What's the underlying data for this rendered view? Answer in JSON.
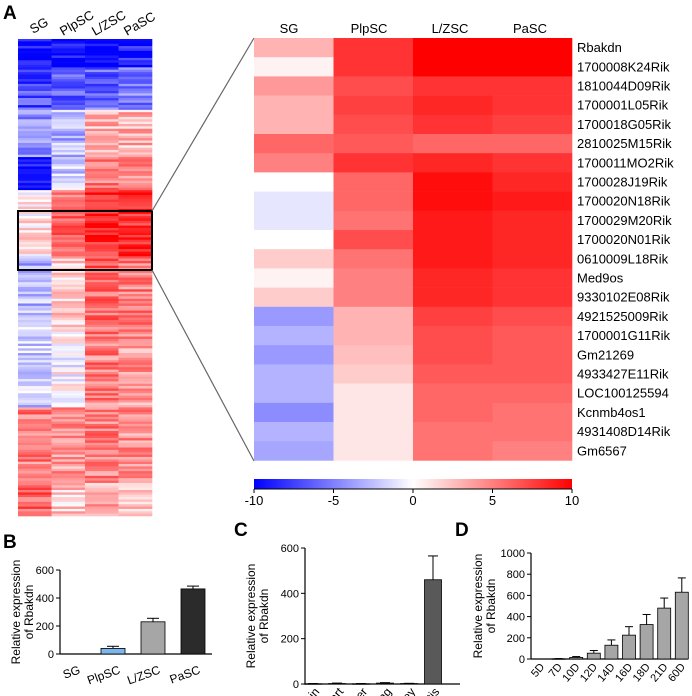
{
  "panels": {
    "a": "A",
    "b": "B",
    "c": "C",
    "d": "D"
  },
  "overview_columns": [
    "SG",
    "PlpSC",
    "L/ZSC",
    "PaSC"
  ],
  "chart_data": [
    {
      "type": "heatmap",
      "title": "Overview heatmap (panel A, left)",
      "columns": [
        "SG",
        "PlpSC",
        "L/ZSC",
        "PaSC"
      ],
      "value_range": [
        -10,
        10
      ],
      "blocks": [
        {
          "rows": 12,
          "values": [
            -10,
            -10,
            -10,
            -9
          ]
        },
        {
          "rows": 18,
          "values": [
            -7,
            -6,
            -6,
            -5
          ]
        },
        {
          "rows": 20,
          "values": [
            -4,
            -3,
            3,
            3
          ]
        },
        {
          "rows": 14,
          "values": [
            -9,
            -2,
            5,
            4
          ]
        },
        {
          "rows": 28,
          "values": [
            1,
            6,
            8,
            8
          ]
        },
        {
          "rows": 30,
          "values": [
            -3,
            2,
            6,
            5
          ]
        },
        {
          "rows": 34,
          "values": [
            -2,
            0,
            5,
            4
          ]
        },
        {
          "rows": 32,
          "values": [
            5,
            4,
            5,
            4
          ]
        },
        {
          "rows": 14,
          "values": [
            6,
            2,
            3,
            3
          ]
        }
      ]
    },
    {
      "type": "heatmap",
      "title": "Zoomed heatmap (panel A, right)",
      "columns": [
        "SG",
        "PlpSC",
        "L/ZSC",
        "PaSC"
      ],
      "rows": [
        "Rbakdn",
        "1700008K24Rik",
        "1810044D09Rik",
        "1700001L05Rik",
        "1700018G05Rik",
        "2810025M15Rik",
        "1700011MO2Rik",
        "1700028J19Rik",
        "1700020N18Rik",
        "1700029M20Rik",
        "1700020N01Rik",
        "0610009L18Rik",
        "Med9os",
        "9330102E08Rik",
        "4921525009Rik",
        "1700001G11Rik",
        "Gm21269",
        "4933427E11Rik",
        "LOC100125594",
        "Kcnmb4os1",
        "4931408D14Rik",
        "Gm6567"
      ],
      "values": [
        [
          3,
          8,
          10,
          10
        ],
        [
          0.5,
          8,
          10,
          10
        ],
        [
          4,
          7,
          8,
          8
        ],
        [
          3,
          7.5,
          8.5,
          8
        ],
        [
          3,
          7,
          8,
          7.5
        ],
        [
          6,
          6.5,
          6,
          6
        ],
        [
          5,
          8,
          8.5,
          8
        ],
        [
          0,
          6,
          9.5,
          8.5
        ],
        [
          -1,
          6,
          9.5,
          9
        ],
        [
          -1,
          5.5,
          9,
          8.5
        ],
        [
          0,
          7,
          9,
          8.5
        ],
        [
          2,
          5.5,
          9,
          8.5
        ],
        [
          0.5,
          5,
          8.5,
          8
        ],
        [
          2,
          5,
          8.5,
          8
        ],
        [
          -4,
          3,
          7.5,
          7
        ],
        [
          -3,
          3,
          7,
          6.5
        ],
        [
          -4,
          2.5,
          7,
          6.5
        ],
        [
          -3,
          2,
          6.5,
          6.5
        ],
        [
          -3,
          1,
          6,
          6
        ],
        [
          -4.5,
          1,
          6,
          5.5
        ],
        [
          -3,
          1,
          5.5,
          5.5
        ],
        [
          -3.5,
          1,
          5.5,
          5
        ]
      ],
      "colorbar": {
        "min": -10,
        "max": 10,
        "ticks": [
          "-10",
          "-5",
          "0",
          "5",
          "10"
        ]
      }
    },
    {
      "type": "bar",
      "panel": "B",
      "categories": [
        "SG",
        "PlpSC",
        "L/ZSC",
        "PaSC"
      ],
      "values": [
        0,
        40,
        230,
        465
      ],
      "errors": [
        0,
        15,
        25,
        20
      ],
      "colors": [
        "#ffffff",
        "#7cb6ea",
        "#a6a6a6",
        "#2b2b2b"
      ],
      "ylabel": [
        "Relative expression",
        "of Rbakdn"
      ],
      "ylim": [
        0,
        600
      ],
      "yticks": [
        "0",
        "200",
        "400",
        "600"
      ]
    },
    {
      "type": "bar",
      "panel": "C",
      "categories": [
        "Brain",
        "Heart",
        "Liver",
        "Lung",
        "Kidney",
        "Testis"
      ],
      "values": [
        1,
        2,
        1,
        4,
        2,
        460
      ],
      "errors": [
        1,
        2,
        1,
        2,
        1,
        105
      ],
      "ylabel": [
        "Relative expression",
        "of Rbakdn"
      ],
      "ylim": [
        0,
        600
      ],
      "yticks": [
        "0",
        "200",
        "400",
        "600"
      ]
    },
    {
      "type": "bar",
      "panel": "D",
      "categories": [
        "5D",
        "7D",
        "10D",
        "12D",
        "14D",
        "16D",
        "18D",
        "21D",
        "60D"
      ],
      "values": [
        0,
        2,
        15,
        55,
        130,
        225,
        325,
        480,
        630
      ],
      "errors": [
        0,
        2,
        8,
        25,
        50,
        80,
        95,
        95,
        135
      ],
      "ylabel": [
        "Relative expression",
        "of Rbakdn"
      ],
      "ylim": [
        0,
        1000
      ],
      "yticks": [
        "0",
        "200",
        "400",
        "600",
        "800",
        "1000"
      ]
    }
  ]
}
